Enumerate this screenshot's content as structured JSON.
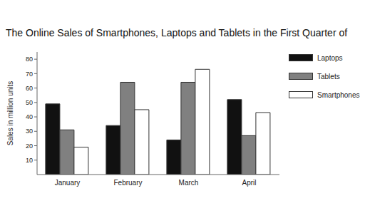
{
  "chart_data": {
    "type": "bar",
    "title": "The Online Sales of Smartphones, Laptops and Tablets in the First Quarter of",
    "y_label": "Sales in million units",
    "categories": [
      "January",
      "February",
      "March",
      "April"
    ],
    "series": [
      {
        "name": "Laptops",
        "color": "#111111",
        "values": [
          49,
          34,
          24,
          52
        ]
      },
      {
        "name": "Tablets",
        "color": "#808080",
        "values": [
          31,
          64,
          64,
          27
        ]
      },
      {
        "name": "Smartphones",
        "color": "#ffffff",
        "values": [
          19,
          45,
          73,
          43
        ]
      }
    ],
    "ylim": [
      0,
      85
    ],
    "yticks": [
      10,
      20,
      30,
      40,
      50,
      60,
      70,
      80
    ],
    "grid": false,
    "legend": "right"
  }
}
